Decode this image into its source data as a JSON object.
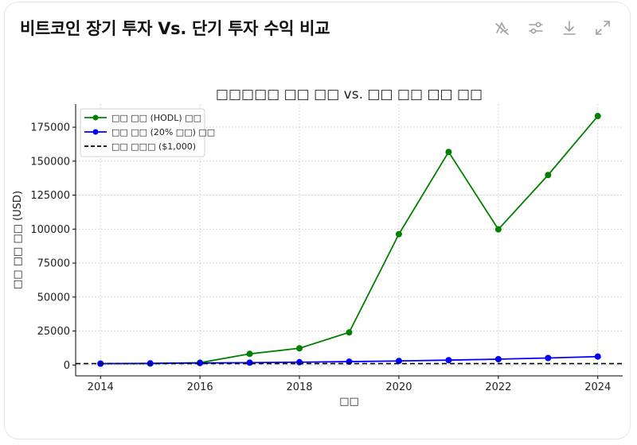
{
  "header": {
    "title": "비트코인 장기 투자 Vs. 단기 투자 수익 비교",
    "toolbar": [
      {
        "name": "disable-interactive-icon",
        "label": "Disable interactive"
      },
      {
        "name": "settings-sliders-icon",
        "label": "Chart settings"
      },
      {
        "name": "download-icon",
        "label": "Download"
      },
      {
        "name": "expand-icon",
        "label": "Expand"
      }
    ]
  },
  "chart_data": {
    "type": "line",
    "title": "□□□□□ □□ □□ vs. □□ □□ □□ □□",
    "xlabel": "□□",
    "ylabel": "□□ □□ □□ (USD)",
    "x": [
      2014,
      2015,
      2016,
      2017,
      2018,
      2019,
      2020,
      2021,
      2022,
      2023,
      2024
    ],
    "xticks": [
      "2014",
      "2016",
      "2018",
      "2020",
      "2022",
      "2024"
    ],
    "yticks": [
      "0",
      "25000",
      "50000",
      "75000",
      "100000",
      "125000",
      "150000",
      "175000"
    ],
    "ylim": [
      -8000,
      192000
    ],
    "xlim": [
      2013.5,
      2024.5
    ],
    "grid": true,
    "legend_position": "upper left",
    "series": [
      {
        "name": "□□ □□ (HODL) □□",
        "color": "#008000",
        "style": "solid",
        "marker": "o",
        "values": [
          1000,
          1100,
          1700,
          8200,
          12300,
          24000,
          96300,
          156800,
          99800,
          139800,
          183200
        ]
      },
      {
        "name": "□□ □□ (20% □□) □□",
        "color": "#0000ff",
        "style": "solid",
        "marker": "o",
        "values": [
          1000,
          1200,
          1440,
          1728,
          2074,
          2488,
          2986,
          3583,
          4300,
          5160,
          6192
        ]
      },
      {
        "name": "□□ □□□ ($1,000)",
        "color": "#000000",
        "style": "dashed",
        "marker": "none",
        "values": [
          1000,
          1000,
          1000,
          1000,
          1000,
          1000,
          1000,
          1000,
          1000,
          1000,
          1000
        ]
      }
    ]
  }
}
